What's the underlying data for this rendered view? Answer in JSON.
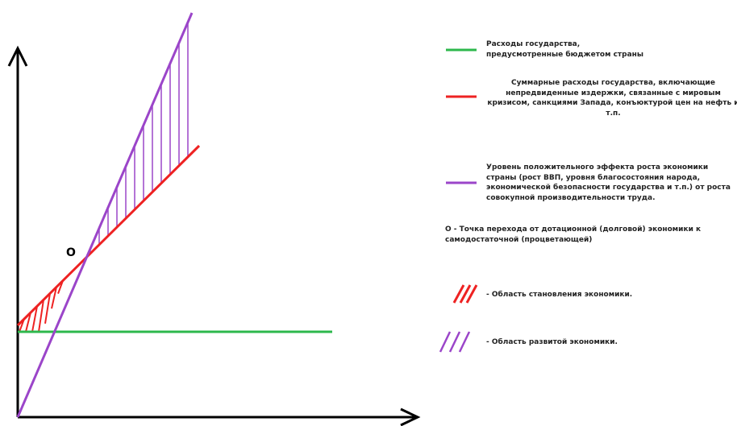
{
  "colors": {
    "budget": "#2db84c",
    "total": "#ee2222",
    "effect": "#9b45c9",
    "axis": "#000000"
  },
  "labels": {
    "point_o": "О"
  },
  "legend": {
    "budget": "Расходы государства, предусмотренные бюджетом страны",
    "total": "Суммарные расходы государства, включающие непредвиденные издержки, связанные с  мировым кризисом, санкциями Запада, конъюктурой цен на нефть и т.п.",
    "effect": "Уровень положительного эффекта роста экономики страны (рост ВВП, уровня благосостояния народа, экономической безопасности государства и т.п.) от роста совокупной производительности труда.",
    "point": "О - Точка перехода от дотационной (долговой) экономики к самодостаточной (процветающей)",
    "area_forming": "- Область становления экономики.",
    "area_developed": "- Область развитой экономики."
  }
}
